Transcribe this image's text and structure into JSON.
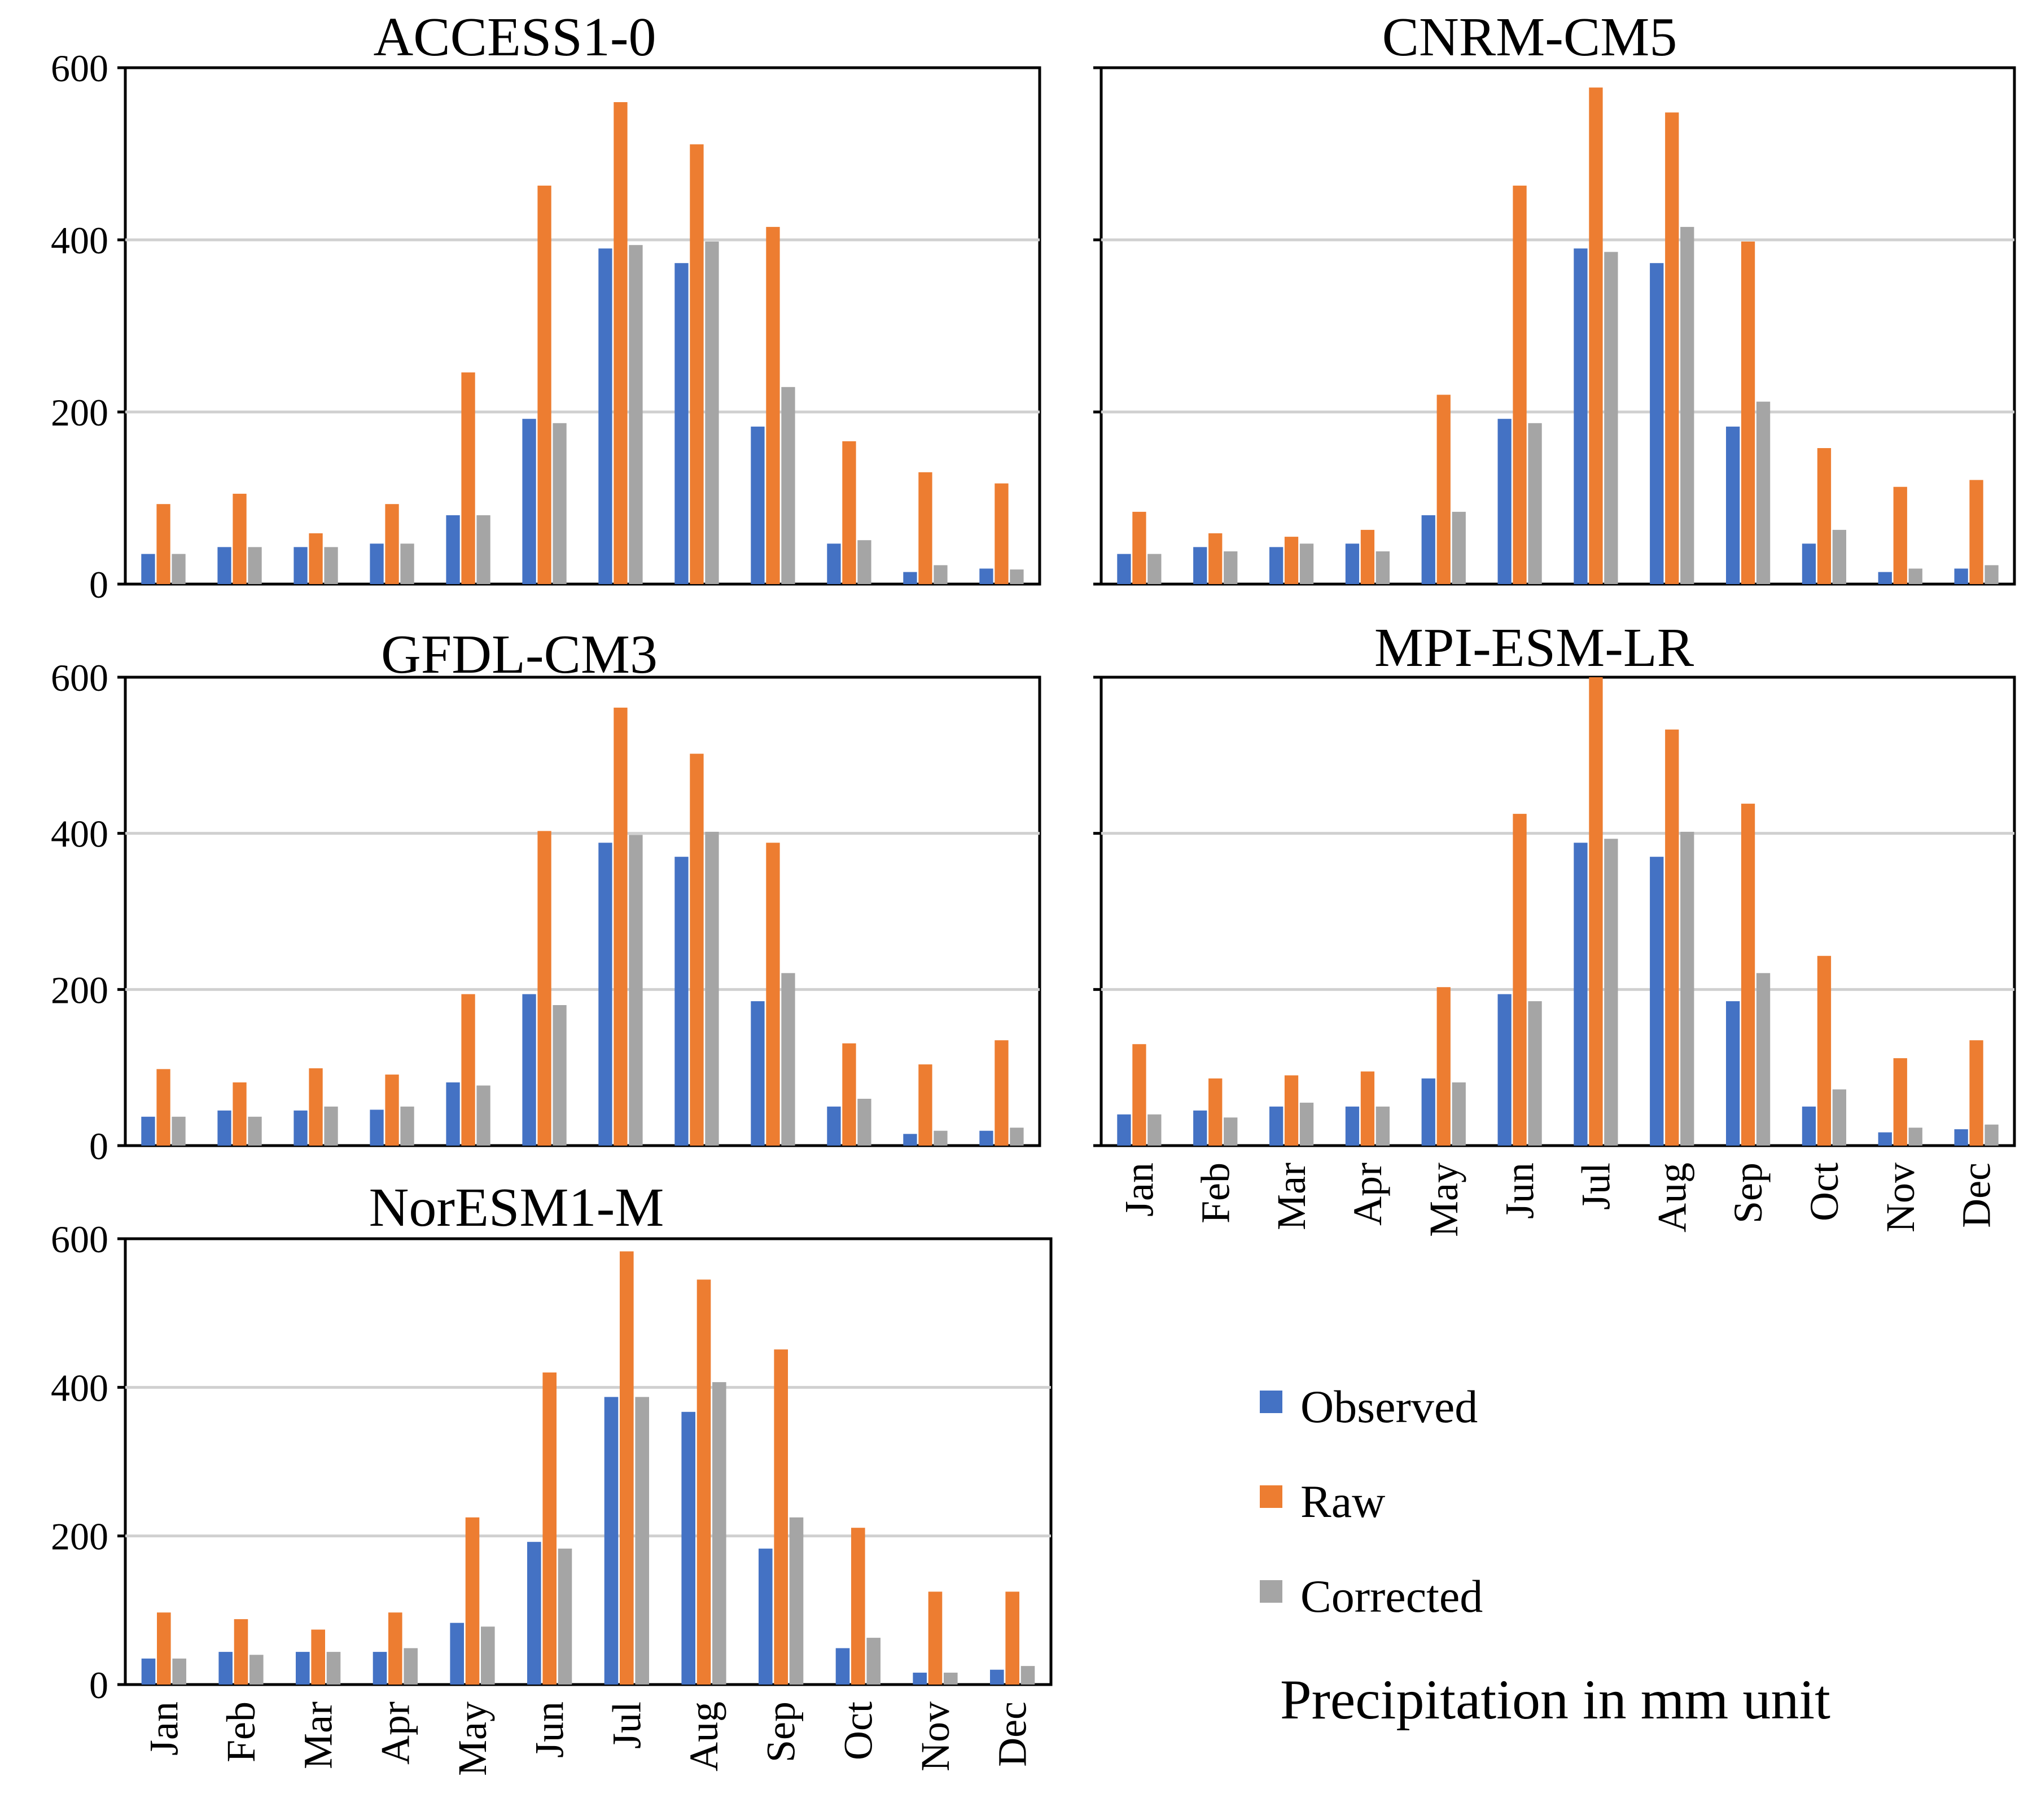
{
  "figure": {
    "caption": "Precipitation in mm unit",
    "legend": [
      {
        "label": "Observed",
        "color": "#4472C4"
      },
      {
        "label": "Raw",
        "color": "#ED7D31"
      },
      {
        "label": "Corrected",
        "color": "#A5A5A5"
      }
    ]
  },
  "chart_data": [
    {
      "type": "bar",
      "title": "ACCESS1-0",
      "categories": [
        "Jan",
        "Feb",
        "Mar",
        "Apr",
        "May",
        "Jun",
        "Jul",
        "Aug",
        "Sep",
        "Oct",
        "Nov",
        "Dec"
      ],
      "ylim": [
        0,
        600
      ],
      "yticks": [
        "0",
        "200",
        "400",
        "600"
      ],
      "grid": true,
      "series": [
        {
          "name": "Observed",
          "values": [
            35,
            43,
            43,
            47,
            80,
            192,
            390,
            373,
            183,
            47,
            14,
            18
          ]
        },
        {
          "name": "Raw",
          "values": [
            93,
            105,
            59,
            93,
            246,
            463,
            560,
            511,
            415,
            166,
            130,
            117
          ]
        },
        {
          "name": "Corrected",
          "values": [
            35,
            43,
            43,
            47,
            80,
            187,
            394,
            398,
            229,
            51,
            22,
            17
          ]
        }
      ]
    },
    {
      "type": "bar",
      "title": "CNRM-CM5",
      "categories": [
        "Jan",
        "Feb",
        "Mar",
        "Apr",
        "May",
        "Jun",
        "Jul",
        "Aug",
        "Sep",
        "Oct",
        "Nov",
        "Dec"
      ],
      "ylim": [
        0,
        600
      ],
      "yticks": [
        "0",
        "200",
        "400",
        "600"
      ],
      "grid": true,
      "series": [
        {
          "name": "Observed",
          "values": [
            35,
            43,
            43,
            47,
            80,
            192,
            390,
            373,
            183,
            47,
            14,
            18
          ]
        },
        {
          "name": "Raw",
          "values": [
            84,
            59,
            55,
            63,
            220,
            463,
            577,
            548,
            398,
            158,
            113,
            121
          ]
        },
        {
          "name": "Corrected",
          "values": [
            35,
            38,
            47,
            38,
            84,
            187,
            386,
            415,
            212,
            63,
            18,
            22
          ]
        }
      ]
    },
    {
      "type": "bar",
      "title": "GFDL-CM3",
      "categories": [
        "Jan",
        "Feb",
        "Mar",
        "Apr",
        "May",
        "Jun",
        "Jul",
        "Aug",
        "Sep",
        "Oct",
        "Nov",
        "Dec"
      ],
      "ylim": [
        0,
        600
      ],
      "yticks": [
        "0",
        "200",
        "400",
        "600"
      ],
      "grid": true,
      "series": [
        {
          "name": "Observed",
          "values": [
            37,
            45,
            45,
            46,
            81,
            194,
            388,
            370,
            185,
            50,
            15,
            19
          ]
        },
        {
          "name": "Raw",
          "values": [
            98,
            81,
            99,
            91,
            194,
            403,
            561,
            502,
            388,
            131,
            104,
            135
          ]
        },
        {
          "name": "Corrected",
          "values": [
            37,
            37,
            50,
            50,
            77,
            180,
            398,
            402,
            221,
            60,
            19,
            23
          ]
        }
      ]
    },
    {
      "type": "bar",
      "title": "MPI-ESM-LR",
      "categories": [
        "Jan",
        "Feb",
        "Mar",
        "Apr",
        "May",
        "Jun",
        "Jul",
        "Aug",
        "Sep",
        "Oct",
        "Nov",
        "Dec"
      ],
      "ylim": [
        0,
        600
      ],
      "yticks": [
        "0",
        "200",
        "400",
        "600"
      ],
      "grid": true,
      "series": [
        {
          "name": "Observed",
          "values": [
            40,
            45,
            50,
            50,
            86,
            194,
            388,
            370,
            185,
            50,
            17,
            21
          ]
        },
        {
          "name": "Raw",
          "values": [
            130,
            86,
            90,
            95,
            203,
            425,
            600,
            533,
            438,
            243,
            112,
            135
          ]
        },
        {
          "name": "Corrected",
          "values": [
            40,
            36,
            55,
            50,
            81,
            185,
            393,
            402,
            221,
            72,
            23,
            27
          ]
        }
      ]
    },
    {
      "type": "bar",
      "title": "NorESM1-M",
      "categories": [
        "Jan",
        "Feb",
        "Mar",
        "Apr",
        "May",
        "Jun",
        "Jul",
        "Aug",
        "Sep",
        "Oct",
        "Nov",
        "Dec"
      ],
      "ylim": [
        0,
        600
      ],
      "yticks": [
        "0",
        "200",
        "400",
        "600"
      ],
      "grid": true,
      "series": [
        {
          "name": "Observed",
          "values": [
            35,
            44,
            44,
            44,
            83,
            192,
            387,
            367,
            183,
            49,
            16,
            20
          ]
        },
        {
          "name": "Raw",
          "values": [
            97,
            88,
            74,
            97,
            225,
            420,
            583,
            545,
            451,
            211,
            125,
            125
          ]
        },
        {
          "name": "Corrected",
          "values": [
            35,
            40,
            44,
            49,
            78,
            183,
            387,
            407,
            225,
            63,
            16,
            25
          ]
        }
      ]
    }
  ]
}
